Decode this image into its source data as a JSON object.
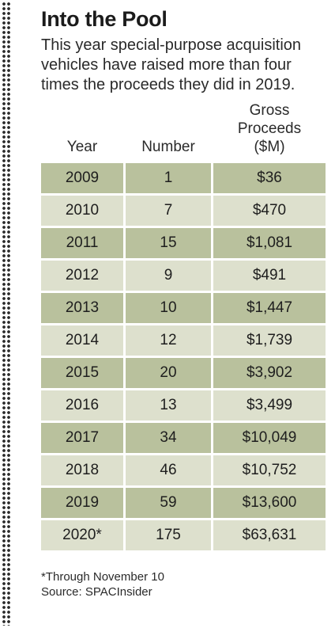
{
  "title": "Into the Pool",
  "subtitle": "This year special-purpose acquisition vehicles have raised more than four times the proceeds they did in 2019.",
  "colors": {
    "row_dark": "#b9c19d",
    "row_light": "#dde0cd"
  },
  "chart_data": {
    "type": "table",
    "columns": [
      "Year",
      "Number",
      "Gross Proceeds ($M)"
    ],
    "rows": [
      [
        "2009",
        "1",
        "$36"
      ],
      [
        "2010",
        "7",
        "$470"
      ],
      [
        "2011",
        "15",
        "$1,081"
      ],
      [
        "2012",
        "9",
        "$491"
      ],
      [
        "2013",
        "10",
        "$1,447"
      ],
      [
        "2014",
        "12",
        "$1,739"
      ],
      [
        "2015",
        "20",
        "$3,902"
      ],
      [
        "2016",
        "13",
        "$3,499"
      ],
      [
        "2017",
        "34",
        "$10,049"
      ],
      [
        "2018",
        "46",
        "$10,752"
      ],
      [
        "2019",
        "59",
        "$13,600"
      ],
      [
        "2020*",
        "175",
        "$63,631"
      ]
    ]
  },
  "footnote": "*Through November 10",
  "source": "Source: SPACInsider"
}
